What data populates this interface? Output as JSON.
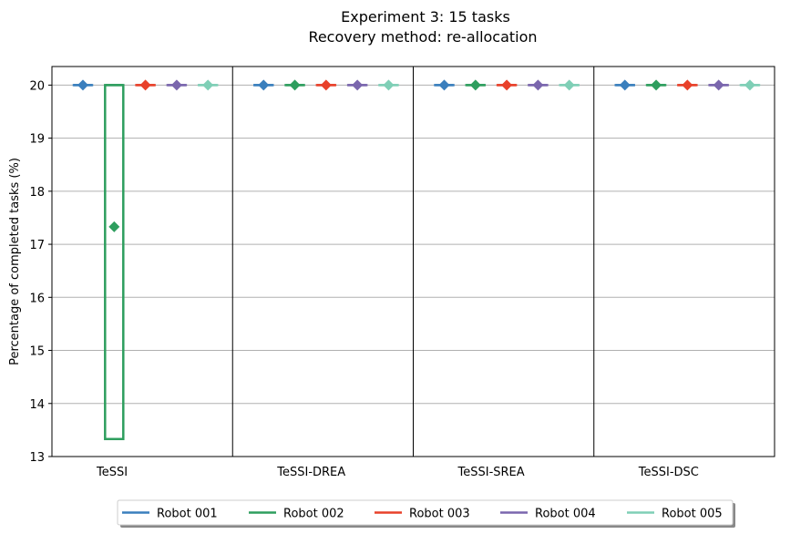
{
  "chart_data": {
    "type": "boxplot",
    "title_lines": [
      "Experiment 3:  15 tasks",
      "Recovery method: re-allocation"
    ],
    "ylabel": "Percentage of completed tasks (%)",
    "xlabel": "",
    "ylim": [
      13,
      20.35
    ],
    "yticks": [
      13,
      14,
      15,
      16,
      17,
      18,
      19,
      20
    ],
    "grid": "y",
    "legend_position": "bottom-center",
    "groups": [
      "TeSSI",
      "TeSSI-DREA",
      "TeSSI-SREA",
      "TeSSI-DSC"
    ],
    "series": [
      {
        "name": "Robot 001",
        "color": "#3a7fbd",
        "boxes": [
          {
            "q1": 20,
            "q3": 20,
            "median": 20,
            "mean": 20
          },
          {
            "q1": 20,
            "q3": 20,
            "median": 20,
            "mean": 20
          },
          {
            "q1": 20,
            "q3": 20,
            "median": 20,
            "mean": 20
          },
          {
            "q1": 20,
            "q3": 20,
            "median": 20,
            "mean": 20
          }
        ]
      },
      {
        "name": "Robot 002",
        "color": "#2e9e5e",
        "boxes": [
          {
            "q1": 13.33,
            "q3": 20,
            "median": 20,
            "mean": 17.33
          },
          {
            "q1": 20,
            "q3": 20,
            "median": 20,
            "mean": 20
          },
          {
            "q1": 20,
            "q3": 20,
            "median": 20,
            "mean": 20
          },
          {
            "q1": 20,
            "q3": 20,
            "median": 20,
            "mean": 20
          }
        ]
      },
      {
        "name": "Robot 003",
        "color": "#e8412a",
        "boxes": [
          {
            "q1": 20,
            "q3": 20,
            "median": 20,
            "mean": 20
          },
          {
            "q1": 20,
            "q3": 20,
            "median": 20,
            "mean": 20
          },
          {
            "q1": 20,
            "q3": 20,
            "median": 20,
            "mean": 20
          },
          {
            "q1": 20,
            "q3": 20,
            "median": 20,
            "mean": 20
          }
        ]
      },
      {
        "name": "Robot 004",
        "color": "#7a66ad",
        "boxes": [
          {
            "q1": 20,
            "q3": 20,
            "median": 20,
            "mean": 20
          },
          {
            "q1": 20,
            "q3": 20,
            "median": 20,
            "mean": 20
          },
          {
            "q1": 20,
            "q3": 20,
            "median": 20,
            "mean": 20
          },
          {
            "q1": 20,
            "q3": 20,
            "median": 20,
            "mean": 20
          }
        ]
      },
      {
        "name": "Robot 005",
        "color": "#7fcfb6",
        "boxes": [
          {
            "q1": 20,
            "q3": 20,
            "median": 20,
            "mean": 20
          },
          {
            "q1": 20,
            "q3": 20,
            "median": 20,
            "mean": 20
          },
          {
            "q1": 20,
            "q3": 20,
            "median": 20,
            "mean": 20
          },
          {
            "q1": 20,
            "q3": 20,
            "median": 20,
            "mean": 20
          }
        ]
      }
    ]
  }
}
